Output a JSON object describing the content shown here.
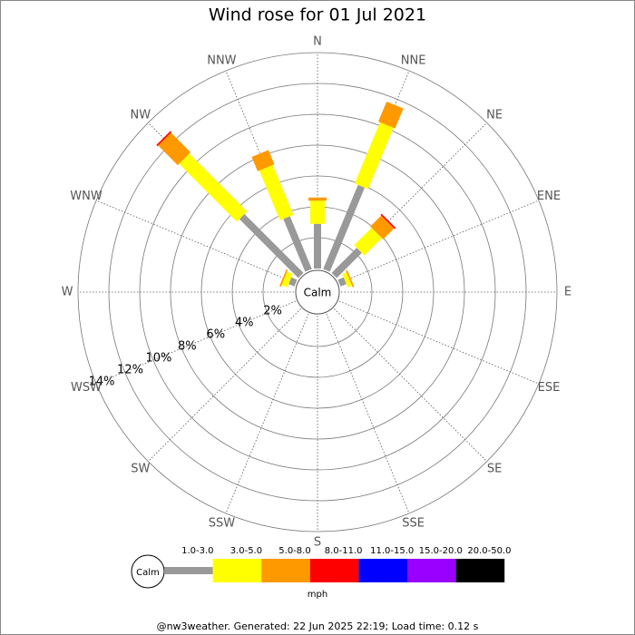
{
  "chart_data": {
    "type": "windrose",
    "title": "Wind rose for 01 Jul 2021",
    "categories": [
      "N",
      "NNE",
      "NE",
      "ENE",
      "E",
      "ESE",
      "SE",
      "SSE",
      "S",
      "SSW",
      "SW",
      "WSW",
      "W",
      "WNW",
      "NW",
      "NNW"
    ],
    "series": [
      {
        "name": "1.0-3.0",
        "color": "#999999",
        "values": [
          2.9,
          5.9,
          2.3,
          0.4,
          0,
          0,
          0,
          0,
          0,
          0,
          0,
          0,
          0,
          0.4,
          5.4,
          3.7
        ]
      },
      {
        "name": "3.0-5.0",
        "color": "#ffff00",
        "values": [
          1.5,
          4.3,
          1.6,
          0.3,
          0,
          0,
          0,
          0,
          0,
          0,
          0,
          0,
          0,
          0.4,
          5.3,
          3.5
        ]
      },
      {
        "name": "5.0-8.0",
        "color": "#ff9900",
        "values": [
          0.2,
          1.4,
          1.0,
          0.1,
          0,
          0,
          0,
          0,
          0,
          0,
          0,
          0,
          0,
          0.1,
          1.8,
          1.0
        ]
      },
      {
        "name": "8.0-11.0",
        "color": "#ff0000",
        "values": [
          0,
          0,
          0.1,
          0,
          0,
          0,
          0,
          0,
          0,
          0,
          0,
          0,
          0,
          0,
          0.1,
          0
        ]
      },
      {
        "name": "11.0-15.0",
        "color": "#0000ff",
        "values": [
          0,
          0,
          0,
          0,
          0,
          0,
          0,
          0,
          0,
          0,
          0,
          0,
          0,
          0,
          0,
          0
        ]
      },
      {
        "name": "15.0-20.0",
        "color": "#9900ff",
        "values": [
          0,
          0,
          0,
          0,
          0,
          0,
          0,
          0,
          0,
          0,
          0,
          0,
          0,
          0,
          0,
          0
        ]
      },
      {
        "name": "20.0-50.0",
        "color": "#000000",
        "values": [
          0,
          0,
          0,
          0,
          0,
          0,
          0,
          0,
          0,
          0,
          0,
          0,
          0,
          0,
          0,
          0
        ]
      }
    ],
    "rlim": [
      0,
      14
    ],
    "rticks": [
      {
        "value": 2,
        "label": "2%"
      },
      {
        "value": 4,
        "label": "4%"
      },
      {
        "value": 6,
        "label": "6%"
      },
      {
        "value": 8,
        "label": "8%"
      },
      {
        "value": 10,
        "label": "10%"
      },
      {
        "value": 12,
        "label": "12%"
      },
      {
        "value": 14,
        "label": "14%"
      }
    ],
    "calm_label": "Calm",
    "unit_label": "mph",
    "footer": "@nw3weather. Generated: 22 Jun 2025 22:19; Load time: 0.12 s"
  }
}
